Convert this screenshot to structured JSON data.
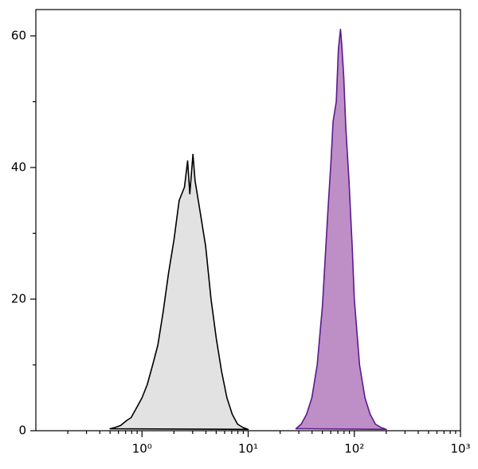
{
  "chart_data": {
    "type": "histogram-overlay",
    "xlim": [
      0.1,
      1000
    ],
    "xlog": true,
    "xticks": [
      {
        "value": 1,
        "label": "10⁰"
      },
      {
        "value": 10,
        "label": "10¹"
      },
      {
        "value": 100,
        "label": "10²"
      },
      {
        "value": 1000,
        "label": "10³"
      }
    ],
    "xminor_ticks": [
      0.2,
      0.3,
      0.4,
      0.5,
      0.6,
      0.7,
      0.8,
      0.9,
      2,
      3,
      4,
      5,
      6,
      7,
      8,
      9,
      20,
      30,
      40,
      50,
      60,
      70,
      80,
      90,
      200,
      300,
      400,
      500,
      600,
      700,
      800,
      900
    ],
    "ylim": [
      0,
      64
    ],
    "yticks": [
      0,
      20,
      40,
      60
    ],
    "yminor_ticks": [
      10,
      30,
      50
    ],
    "series": [
      {
        "color": "#000000",
        "fill": "#e0e0e0",
        "x": [
          0.5,
          0.56,
          0.63,
          0.71,
          0.79,
          0.89,
          1,
          1.12,
          1.26,
          1.41,
          1.58,
          1.78,
          2,
          2.24,
          2.51,
          2.69,
          2.82,
          3.02,
          3.16,
          3.55,
          3.98,
          4.47,
          5.01,
          5.62,
          6.31,
          7.08,
          7.94,
          8.91,
          10
        ],
        "values": [
          0.3,
          0.5,
          0.8,
          1.5,
          2,
          3.5,
          5,
          7,
          10,
          13,
          18,
          24,
          29,
          35,
          37,
          41,
          36,
          42,
          38,
          33,
          28,
          20,
          14,
          9,
          5,
          2.5,
          1,
          0.5,
          0.2
        ]
      },
      {
        "color": "#5b1a8a",
        "fill": "#bb88c4",
        "x": [
          28.2,
          31.6,
          35.5,
          39.8,
          44.7,
          50.1,
          56.2,
          60.3,
          63.1,
          67.6,
          70.8,
          74.1,
          75.9,
          79.4,
          83.2,
          89.1,
          95.5,
          100,
          112,
          126,
          141,
          158,
          178,
          200
        ],
        "values": [
          0.3,
          1,
          2.5,
          5,
          10,
          19,
          33,
          41,
          47,
          50,
          58,
          61,
          59,
          54,
          46,
          38,
          28,
          20,
          10,
          5,
          2.5,
          1,
          0.5,
          0.2
        ]
      }
    ]
  }
}
